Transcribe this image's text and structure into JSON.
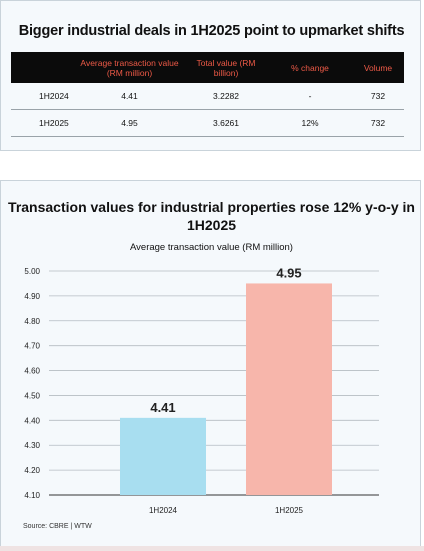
{
  "table": {
    "title": "Bigger industrial deals in 1H2025 point to upmarket shifts",
    "headers": [
      "",
      "Average transaction value (RM million)",
      "Total value (RM billion)",
      "% change",
      "Volume"
    ],
    "rows": [
      [
        "1H2024",
        "4.41",
        "3.2282",
        "-",
        "732"
      ],
      [
        "1H2025",
        "4.95",
        "3.6261",
        "12%",
        "732"
      ]
    ]
  },
  "colors": {
    "header_bg": "#0b0b0b",
    "header_text": "#ee5a47",
    "bar_1h2024": "#a8def0",
    "bar_1h2025": "#f7b6ab"
  },
  "chart_data": {
    "type": "bar",
    "title": "Transaction values for industrial properties rose 12% y-o-y in 1H2025",
    "subtitle": "Average transaction value (RM million)",
    "categories": [
      "1H2024",
      "1H2025"
    ],
    "values": [
      4.41,
      4.95
    ],
    "value_labels": [
      "4.41",
      "4.95"
    ],
    "ylim": [
      4.1,
      5.0
    ],
    "yticks": [
      "4.10",
      "4.20",
      "4.30",
      "4.40",
      "4.50",
      "4.60",
      "4.70",
      "4.80",
      "4.90",
      "5.00"
    ],
    "xlabel": "",
    "ylabel": "",
    "grid": true,
    "legend": "none"
  },
  "source": "Source: CBRE | WTW"
}
